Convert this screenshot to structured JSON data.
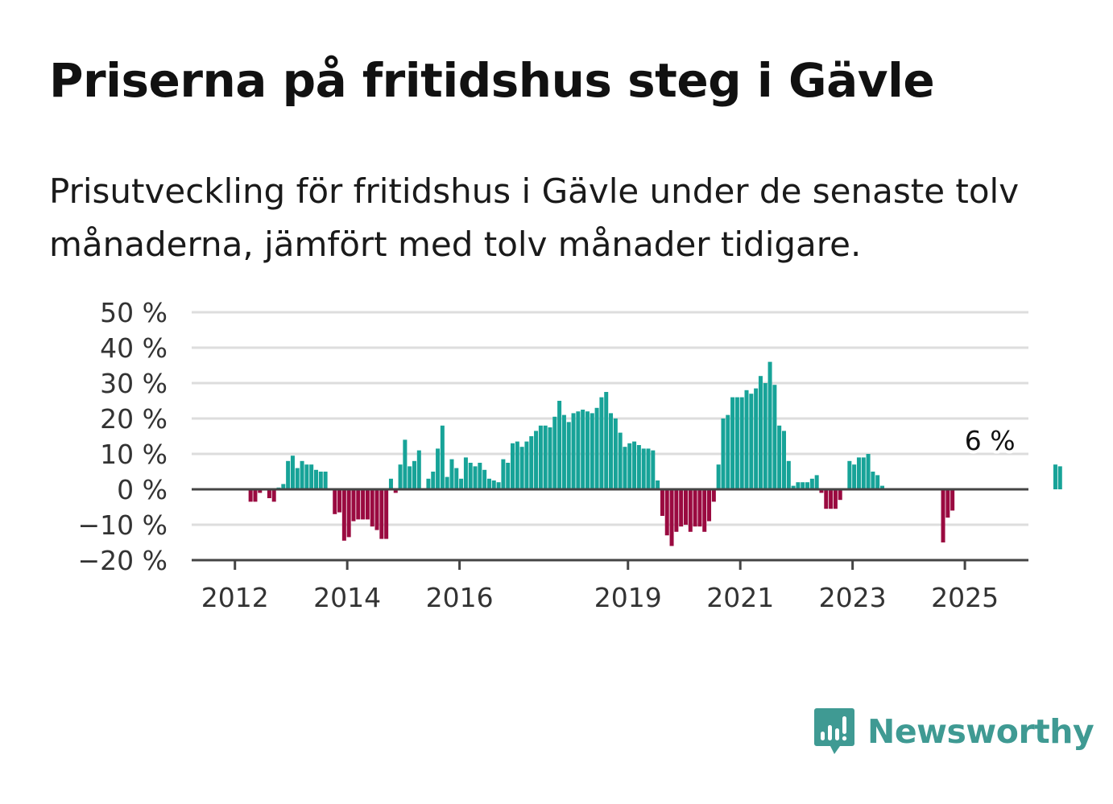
{
  "title": "Priserna på fritidshus steg i Gävle",
  "subtitle": "Prisutveckling för fritidshus i Gävle under de senaste tolv månaderna, jämfört med tolv månader tidigare.",
  "brand": {
    "name": "Newsworthy",
    "color": "#3f9a93",
    "icon": "bar-chart-speech-bubble-icon"
  },
  "colors": {
    "positive": "#17a398",
    "negative": "#9a0a40",
    "grid": "#dddddd",
    "axis": "#444444"
  },
  "chart_data": {
    "type": "bar",
    "title": "",
    "xlabel": "",
    "ylabel": "",
    "ylim": [
      -20,
      50
    ],
    "yticks": [
      -20,
      -10,
      0,
      10,
      20,
      30,
      40,
      50
    ],
    "ytick_labels": [
      "−20 %",
      "−10 %",
      "0 %",
      "10 %",
      "20 %",
      "30 %",
      "40 %",
      "50 %"
    ],
    "grid": "horizontal",
    "x_start": "2011-01",
    "interval": "monthly",
    "xticks": [
      {
        "label": "2012",
        "date": "2012-01"
      },
      {
        "label": "2014",
        "date": "2014-01"
      },
      {
        "label": "2016",
        "date": "2016-01"
      },
      {
        "label": "2019",
        "date": "2019-01"
      },
      {
        "label": "2021",
        "date": "2021-01"
      },
      {
        "label": "2023",
        "date": "2023-01"
      },
      {
        "label": "2025",
        "date": "2025-01"
      }
    ],
    "values": [
      null,
      null,
      null,
      null,
      null,
      null,
      null,
      null,
      null,
      null,
      null,
      null,
      null,
      null,
      null,
      -3.5,
      -3.5,
      -1,
      0,
      -2.5,
      -3.5,
      0.5,
      1.5,
      8,
      9.5,
      6,
      8,
      7,
      7,
      5.5,
      5,
      5,
      0,
      -7,
      -6.5,
      -14.5,
      -13.5,
      -9,
      -8.5,
      -8.5,
      -8.5,
      -10.5,
      -11.5,
      -14,
      -14,
      3,
      -1,
      7,
      14,
      6.5,
      8,
      11,
      0,
      3,
      5,
      11.5,
      18,
      3.5,
      8.5,
      6,
      3,
      9,
      7.5,
      6.5,
      7.5,
      5.5,
      3,
      2.5,
      2,
      8.5,
      7.5,
      13,
      13.5,
      12,
      13.5,
      15,
      16.5,
      18,
      18,
      17.5,
      20.5,
      25,
      21,
      19,
      21.5,
      22,
      22.5,
      22,
      21.5,
      23,
      26,
      27.5,
      21.5,
      20,
      16,
      12,
      13,
      13.5,
      12.5,
      11.5,
      11.5,
      11,
      2.5,
      -7.5,
      -13,
      -16,
      -12,
      -10.5,
      -10,
      -12,
      -10.5,
      -10.5,
      -12,
      -9,
      -3.5,
      7,
      20,
      21,
      26,
      26,
      26,
      28,
      27,
      28.5,
      32,
      30,
      36,
      29.5,
      18,
      16.5,
      8,
      1,
      2,
      2,
      2,
      3,
      4,
      -1,
      -5.5,
      -5.5,
      -5.5,
      -3,
      0,
      8,
      7,
      9,
      9,
      10,
      5,
      4,
      1,
      null,
      null,
      null,
      null,
      null,
      null,
      null,
      null,
      null,
      null,
      null,
      null,
      -15,
      -8,
      -6,
      null,
      null,
      null,
      null,
      null,
      null,
      null,
      null,
      null,
      null,
      null,
      null,
      null,
      null,
      null,
      null,
      null,
      null,
      null,
      null,
      null,
      7,
      6.5
    ],
    "annotation": {
      "text": "6 %",
      "date": "2025-06"
    }
  }
}
